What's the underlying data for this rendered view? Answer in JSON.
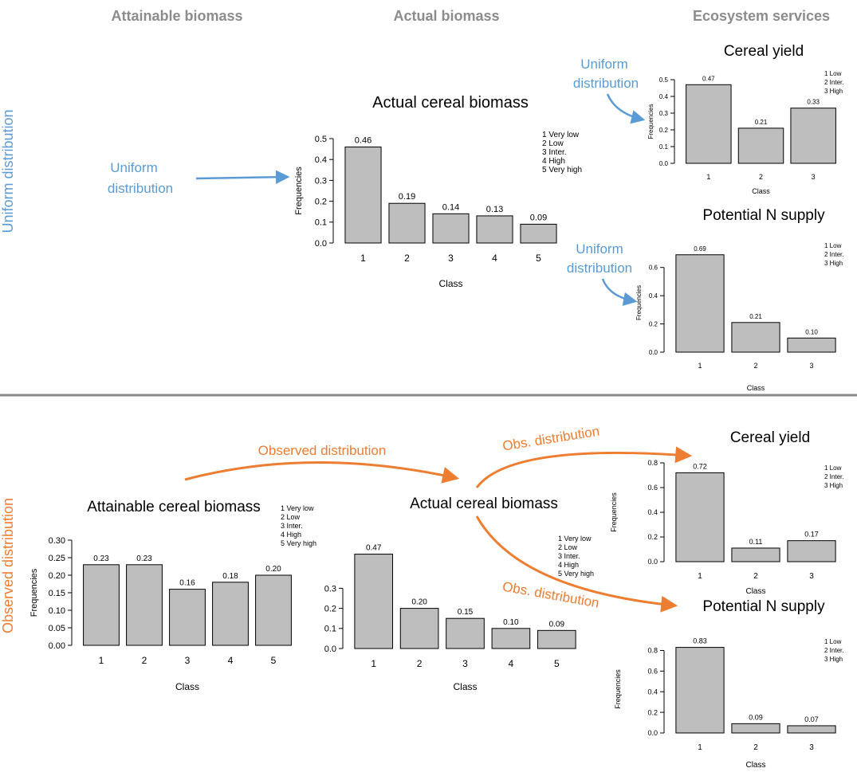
{
  "headers": {
    "attainable": "Attainable biomass",
    "actual": "Actual biomass",
    "services": "Ecosystem services"
  },
  "sections": {
    "top_label": "Uniform distribution",
    "bottom_label": "Observed distribution"
  },
  "flows": {
    "top_main": "Uniform distribution",
    "top_main_line1": "Uniform",
    "top_main_line2": "distribution",
    "top_yield": "Uniform distribution",
    "top_yield_line1": "Uniform",
    "top_yield_line2": "distribution",
    "top_n": "Uniform distribution",
    "top_n_line1": "Uniform",
    "top_n_line2": "distribution",
    "bottom_main": "Observed  distribution",
    "bottom_yield": "Obs. distribution",
    "bottom_n": "Obs. distribution"
  },
  "colors": {
    "uniform": "#5b9bd5",
    "observed": "#ed7d31",
    "bar_fill": "#bebebe",
    "header_gray": "#8c8c8c",
    "divider": "#8a8a8a"
  },
  "chart_data": [
    {
      "id": "top-actual",
      "type": "bar",
      "title": "Actual cereal biomass",
      "categories": [
        "1",
        "2",
        "3",
        "4",
        "5"
      ],
      "values": [
        0.46,
        0.19,
        0.14,
        0.13,
        0.09
      ],
      "value_labels": [
        "0.46",
        "0.19",
        "0.14",
        "0.13",
        "0.09"
      ],
      "xlabel": "Class",
      "ylabel": "Frequencies",
      "ylim": [
        0,
        0.5
      ],
      "yticks": [
        "0.0",
        "0.1",
        "0.2",
        "0.3",
        "0.4",
        "0.5"
      ],
      "legend": [
        "1 Very low",
        "2 Low",
        "3 Inter.",
        "4 High",
        "5 Very high"
      ]
    },
    {
      "id": "top-yield",
      "type": "bar",
      "title": "Cereal yield",
      "categories": [
        "1",
        "2",
        "3"
      ],
      "values": [
        0.47,
        0.21,
        0.33
      ],
      "value_labels": [
        "0.47",
        "0.21",
        "0.33"
      ],
      "xlabel": "Class",
      "ylabel": "Frequencies",
      "ylim": [
        0,
        0.5
      ],
      "yticks": [
        "0.0",
        "0.1",
        "0.2",
        "0.3",
        "0.4",
        "0.5"
      ],
      "legend": [
        "1 Low",
        "2 Inter.",
        "3 High"
      ]
    },
    {
      "id": "top-n",
      "type": "bar",
      "title": "Potential N supply",
      "categories": [
        "1",
        "2",
        "3"
      ],
      "values": [
        0.69,
        0.21,
        0.1
      ],
      "value_labels": [
        "0.69",
        "0.21",
        "0.10"
      ],
      "xlabel": "Class",
      "ylabel": "Frequencies",
      "ylim": [
        0,
        0.7
      ],
      "yticks": [
        "0.0",
        "0.2",
        "0.4",
        "0.6"
      ],
      "legend": [
        "1 Low",
        "2 Inter.",
        "3 High"
      ]
    },
    {
      "id": "bottom-attainable",
      "type": "bar",
      "title": "Attainable cereal biomass",
      "categories": [
        "1",
        "2",
        "3",
        "4",
        "5"
      ],
      "values": [
        0.23,
        0.23,
        0.16,
        0.18,
        0.2
      ],
      "value_labels": [
        "0.23",
        "0.23",
        "0.16",
        "0.18",
        "0.20"
      ],
      "xlabel": "Class",
      "ylabel": "Frequencies",
      "ylim": [
        0,
        0.3
      ],
      "yticks": [
        "0.00",
        "0.05",
        "0.10",
        "0.15",
        "0.20",
        "0.25",
        "0.30"
      ],
      "legend": [
        "1 Very low",
        "2 Low",
        "3 Inter.",
        "4 High",
        "5 Very high"
      ]
    },
    {
      "id": "bottom-actual",
      "type": "bar",
      "title": "Actual cereal biomass",
      "categories": [
        "1",
        "2",
        "3",
        "4",
        "5"
      ],
      "values": [
        0.47,
        0.2,
        0.15,
        0.1,
        0.09
      ],
      "value_labels": [
        "0.47",
        "0.20",
        "0.15",
        "0.10",
        "0.09"
      ],
      "xlabel": "Class",
      "ylabel": "",
      "ylim": [
        0,
        0.5
      ],
      "yticks": [
        "0.0",
        "0.1",
        "0.2",
        "0.3"
      ],
      "legend": [
        "1 Very low",
        "2 Low",
        "3 Inter.",
        "4 High",
        "5 Very high"
      ]
    },
    {
      "id": "bottom-yield",
      "type": "bar",
      "title": "Cereal yield",
      "categories": [
        "1",
        "2",
        "3"
      ],
      "values": [
        0.72,
        0.11,
        0.17
      ],
      "value_labels": [
        "0.72",
        "0.11",
        "0.17"
      ],
      "xlabel": "Class",
      "ylabel": "Frequencies",
      "ylim": [
        0,
        0.8
      ],
      "yticks": [
        "0.0",
        "0.2",
        "0.4",
        "0.6",
        "0.8"
      ],
      "legend": [
        "1 Low",
        "2 Inter.",
        "3 High"
      ]
    },
    {
      "id": "bottom-n",
      "type": "bar",
      "title": "Potential N supply",
      "categories": [
        "1",
        "2",
        "3"
      ],
      "values": [
        0.83,
        0.09,
        0.07
      ],
      "value_labels": [
        "0.83",
        "0.09",
        "0.07"
      ],
      "xlabel": "Class",
      "ylabel": "Frequencies",
      "ylim": [
        0,
        0.85
      ],
      "yticks": [
        "0.0",
        "0.2",
        "0.4",
        "0.6",
        "0.8"
      ],
      "legend": [
        "1 Low",
        "2 Inter.",
        "3 High"
      ]
    }
  ]
}
